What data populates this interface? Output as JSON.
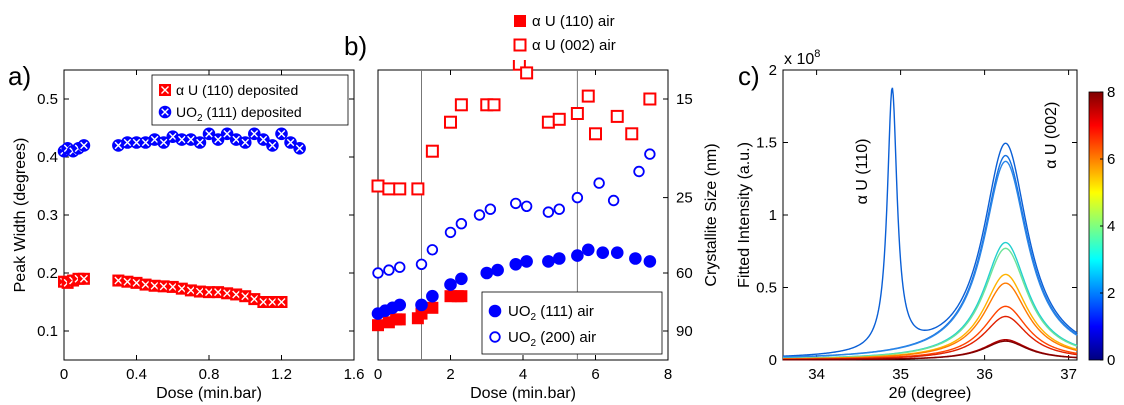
{
  "chart_data": [
    {
      "panel_label": "a)",
      "type": "scatter",
      "xlabel": "Dose (min.bar)",
      "ylabel": "Peak Width (degrees)",
      "xlim": [
        0,
        1.6
      ],
      "ylim": [
        0.05,
        0.55
      ],
      "xticks": [
        "0",
        "0.4",
        "0.8",
        "1.2",
        "1.6"
      ],
      "xtick_values": [
        0,
        0.4,
        0.8,
        1.2,
        1.6
      ],
      "yticks": [
        "0.1",
        "0.2",
        "0.3",
        "0.4",
        "0.5"
      ],
      "ytick_values": [
        0.1,
        0.2,
        0.3,
        0.4,
        0.5
      ],
      "legend": {
        "placement": "top-right"
      },
      "series": [
        {
          "label_main": "α U (110) deposited",
          "color": "#ff0000",
          "marker": "square-x",
          "x": [
            0,
            0.02,
            0.05,
            0.08,
            0.11,
            0.3,
            0.35,
            0.4,
            0.45,
            0.5,
            0.55,
            0.6,
            0.65,
            0.7,
            0.75,
            0.8,
            0.85,
            0.9,
            0.95,
            1.0,
            1.05,
            1.1,
            1.15,
            1.2
          ],
          "y": [
            0.185,
            0.183,
            0.187,
            0.19,
            0.19,
            0.187,
            0.185,
            0.183,
            0.18,
            0.178,
            0.177,
            0.176,
            0.173,
            0.17,
            0.168,
            0.167,
            0.167,
            0.165,
            0.163,
            0.16,
            0.155,
            0.15,
            0.15,
            0.15
          ]
        },
        {
          "label_main": "UO",
          "label_sub": "2",
          "label_rest": " (111) deposited",
          "color": "#0000ff",
          "marker": "circle-x",
          "x": [
            0,
            0.02,
            0.05,
            0.08,
            0.11,
            0.3,
            0.35,
            0.4,
            0.45,
            0.5,
            0.55,
            0.6,
            0.65,
            0.7,
            0.75,
            0.8,
            0.85,
            0.9,
            0.95,
            1.0,
            1.05,
            1.1,
            1.15,
            1.2,
            1.25,
            1.3
          ],
          "y": [
            0.41,
            0.415,
            0.41,
            0.415,
            0.42,
            0.42,
            0.425,
            0.425,
            0.425,
            0.43,
            0.425,
            0.435,
            0.43,
            0.43,
            0.425,
            0.44,
            0.43,
            0.44,
            0.43,
            0.425,
            0.44,
            0.43,
            0.42,
            0.44,
            0.425,
            0.415
          ]
        }
      ]
    },
    {
      "panel_label": "b)",
      "type": "scatter",
      "xlabel": "Dose (min.bar)",
      "ylabel_right": "Crystallite Size (nm)",
      "xlim": [
        0,
        8
      ],
      "ylim": [
        0.05,
        0.55
      ],
      "xticks": [
        "0",
        "2",
        "4",
        "6",
        "8"
      ],
      "xtick_values": [
        0,
        2,
        4,
        6,
        8
      ],
      "right_ticks": [
        "15",
        "25",
        "60",
        "90"
      ],
      "right_tick_positions": [
        0.5,
        0.33,
        0.2,
        0.1
      ],
      "vlines": [
        1.2,
        5.5
      ],
      "legend_top": {
        "placement": "above-plot"
      },
      "legend_bottom": {
        "placement": "bottom-right"
      },
      "series": [
        {
          "label_main": "α U (110) air",
          "color": "#ff0000",
          "marker": "square-filled",
          "legend": "top",
          "x": [
            0,
            0.3,
            0.5,
            0.6,
            1.1,
            1.2,
            1.5,
            2.0,
            2.2,
            2.3
          ],
          "y": [
            0.11,
            0.115,
            0.12,
            0.12,
            0.122,
            0.13,
            0.14,
            0.16,
            0.16,
            0.16
          ]
        },
        {
          "label_main": "α U (002) air",
          "color": "#ff0000",
          "marker": "square-open",
          "legend": "top",
          "x": [
            0,
            0.3,
            0.6,
            1.1,
            1.5,
            2.0,
            2.3,
            3.0,
            3.2,
            3.9,
            4.1,
            4.7,
            5.0,
            5.5,
            5.8,
            6.0,
            6.6,
            7.0,
            7.5
          ],
          "y": [
            0.35,
            0.345,
            0.345,
            0.345,
            0.41,
            0.46,
            0.49,
            0.49,
            0.49,
            0.56,
            0.545,
            0.46,
            0.465,
            0.475,
            0.505,
            0.44,
            0.47,
            0.44,
            0.5
          ]
        },
        {
          "label_main": "UO",
          "label_sub": "2",
          "label_rest": " (111) air",
          "color": "#0000ff",
          "marker": "circle-filled",
          "legend": "bottom",
          "x": [
            0,
            0.2,
            0.4,
            0.6,
            1.2,
            1.5,
            2.0,
            2.3,
            3.0,
            3.3,
            3.8,
            4.1,
            4.7,
            5.0,
            5.5,
            5.8,
            6.2,
            6.6,
            7.1,
            7.5
          ],
          "y": [
            0.13,
            0.135,
            0.14,
            0.145,
            0.145,
            0.16,
            0.18,
            0.19,
            0.2,
            0.205,
            0.215,
            0.22,
            0.22,
            0.225,
            0.23,
            0.24,
            0.235,
            0.235,
            0.225,
            0.22
          ]
        },
        {
          "label_main": "UO",
          "label_sub": "2",
          "label_rest": " (200) air",
          "color": "#0000ff",
          "marker": "circle-open",
          "legend": "bottom",
          "x": [
            0,
            0.3,
            0.6,
            1.2,
            1.5,
            2.0,
            2.3,
            2.8,
            3.1,
            3.8,
            4.1,
            4.7,
            5.0,
            5.5,
            6.1,
            6.5,
            7.2,
            7.5
          ],
          "y": [
            0.2,
            0.205,
            0.21,
            0.215,
            0.24,
            0.27,
            0.285,
            0.3,
            0.31,
            0.32,
            0.315,
            0.305,
            0.31,
            0.33,
            0.355,
            0.325,
            0.375,
            0.405
          ]
        }
      ]
    },
    {
      "panel_label": "c)",
      "type": "line",
      "xlabel": "2θ (degree)",
      "ylabel": "Fitted Intensity (a.u.)",
      "y_multiplier_base": "x 10",
      "y_multiplier_exp": "8",
      "xlim": [
        33.6,
        37.1
      ],
      "ylim": [
        0,
        2
      ],
      "xticks": [
        "34",
        "35",
        "36",
        "37"
      ],
      "xtick_values": [
        34,
        35,
        36,
        37
      ],
      "yticks": [
        "0",
        "0.5",
        "1",
        "1.5",
        "2"
      ],
      "ytick_values": [
        0,
        0.5,
        1,
        1.5,
        2
      ],
      "annotations": [
        {
          "text": "α U (110)",
          "x": 34.6,
          "y": 1.3,
          "rotation": -90
        },
        {
          "text": "α U (002)",
          "x": 36.85,
          "y": 1.55,
          "rotation": -90
        }
      ],
      "peaks": {
        "p110_center": 34.9,
        "p110_width": 0.07,
        "p002_center": 36.25,
        "p002_width": 0.32
      },
      "curves": [
        {
          "color": "#0a5fd6",
          "a110": 1.8,
          "a002": 1.49
        },
        {
          "color": "#1570e0",
          "a110": 0,
          "a002": 1.41
        },
        {
          "color": "#2a86e8",
          "a110": 0,
          "a002": 1.37
        },
        {
          "color": "#23d0cf",
          "a110": 0,
          "a002": 0.81
        },
        {
          "color": "#6de49a",
          "a110": 0,
          "a002": 0.77
        },
        {
          "color": "#ffb300",
          "a110": 0,
          "a002": 0.59
        },
        {
          "color": "#ff7a00",
          "a110": 0,
          "a002": 0.53
        },
        {
          "color": "#ff4500",
          "a110": 0,
          "a002": 0.37
        },
        {
          "color": "#e02000",
          "a110": 0,
          "a002": 0.3
        },
        {
          "color": "#b00000",
          "a110": 0,
          "a002": 0.14
        },
        {
          "color": "#800000",
          "a110": 0,
          "a002": 0.13
        }
      ],
      "colorbar": {
        "ticks": [
          "0",
          "2",
          "4",
          "6",
          "8"
        ],
        "tick_values": [
          0,
          2,
          4,
          6,
          8
        ],
        "range": [
          0,
          8
        ],
        "colors": [
          "#00007f",
          "#0000ff",
          "#007fff",
          "#00ffff",
          "#7fff7f",
          "#ffff00",
          "#ff7f00",
          "#ff0000",
          "#7f0000"
        ]
      }
    }
  ]
}
